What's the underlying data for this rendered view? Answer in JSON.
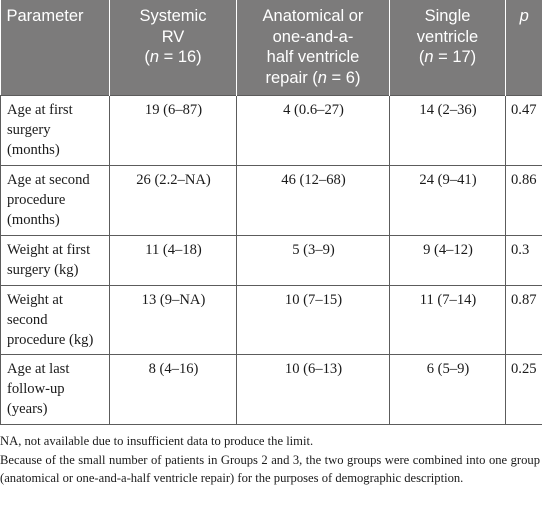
{
  "table": {
    "headers": {
      "parameter": "Parameter",
      "systemic_line1": "Systemic",
      "systemic_line2": "RV",
      "systemic_n_label": "n",
      "systemic_n_value": "16",
      "anatomical_line1": "Anatomical or",
      "anatomical_line2": "one-and-a-",
      "anatomical_line3": "half ventricle",
      "anatomical_line4": "repair (",
      "anatomical_n_label": "n",
      "anatomical_n_value": "6",
      "single_line1": "Single",
      "single_line2": "ventricle",
      "single_n_label": "n",
      "single_n_value": "17",
      "p": "p"
    },
    "rows": [
      {
        "parameter": "Age at first surgery (months)",
        "systemic": "19 (6–87)",
        "anatomical": "4 (0.6–27)",
        "single": "14 (2–36)",
        "p": "0.47"
      },
      {
        "parameter": "Age at second procedure (months)",
        "systemic": "26 (2.2–NA)",
        "anatomical": "46 (12–68)",
        "single": "24 (9–41)",
        "p": "0.86"
      },
      {
        "parameter": "Weight at first surgery (kg)",
        "systemic": "11 (4–18)",
        "anatomical": "5 (3–9)",
        "single": "9 (4–12)",
        "p": "0.3"
      },
      {
        "parameter": "Weight at second procedure (kg)",
        "systemic": "13 (9–NA)",
        "anatomical": "10 (7–15)",
        "single": "11 (7–14)",
        "p": "0.87"
      },
      {
        "parameter": "Age at last follow-up (years)",
        "systemic": "8 (4–16)",
        "anatomical": "10 (6–13)",
        "single": "6 (5–9)",
        "p": "0.25"
      }
    ]
  },
  "footnotes": {
    "na": "NA, not available due to insufficient data to produce the limit.",
    "groups": "Because of the small number of patients in Groups 2 and 3, the two groups were combined into one group (anatomical or one-and-a-half ventricle repair) for the purposes of demographic description."
  }
}
